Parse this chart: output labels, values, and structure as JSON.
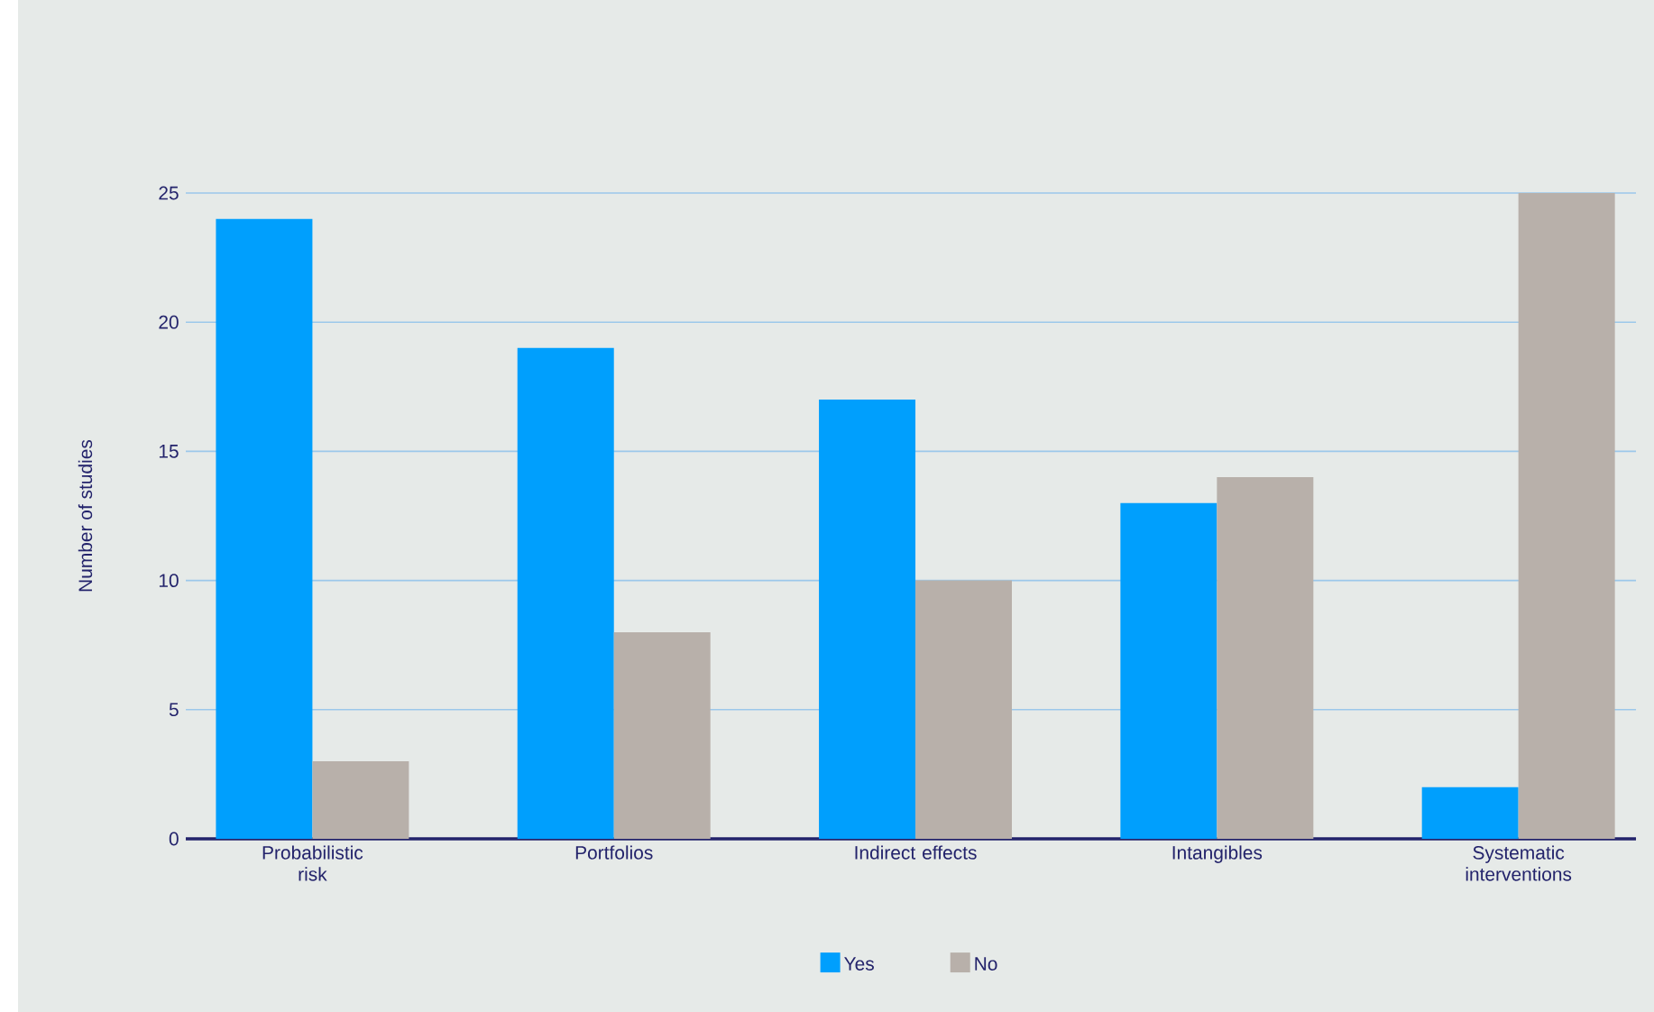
{
  "chart_data": {
    "type": "bar",
    "ylabel": "Number of studies",
    "categories": [
      "Probabilistic risk",
      "Portfolios",
      "Indirect effects",
      "Intangibles",
      "Systematic interventions"
    ],
    "series": [
      {
        "name": "Yes",
        "color": "#009ffd",
        "values": [
          24,
          19,
          17,
          13,
          2
        ]
      },
      {
        "name": "No",
        "color": "#b8b0aa",
        "values": [
          3,
          8,
          10,
          14,
          25
        ]
      }
    ],
    "ylim": [
      0,
      25
    ],
    "yticks": [
      0,
      5,
      10,
      15,
      20,
      25
    ],
    "grid": "y",
    "legend": "bottom"
  }
}
